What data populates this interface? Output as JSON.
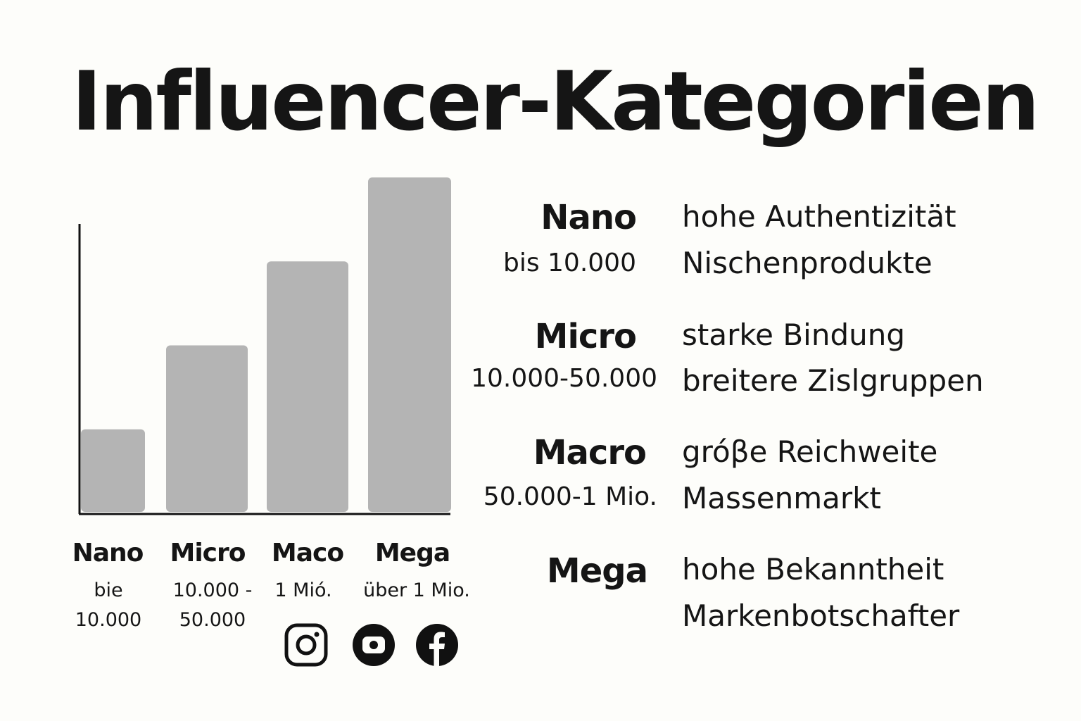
{
  "title": "Influencer-Kategorien",
  "chart_data": {
    "type": "bar",
    "categories": [
      "Nano",
      "Micro",
      "Maco",
      "Mega"
    ],
    "category_ranges": [
      "bie\n10.000",
      "10.000 -\n50.000",
      "1 Mió.",
      "über 1 Mio."
    ],
    "values": [
      1,
      2,
      3,
      4
    ],
    "ylim": [
      0,
      4
    ],
    "xlabel": "",
    "ylabel": "",
    "bar_color": "#b4b4b4",
    "axis_color": "#111111"
  },
  "tiers": [
    {
      "name": "Nano",
      "range": "bis 10.000",
      "traits": [
        "hohe Authentizität",
        "Nischenprodukte"
      ]
    },
    {
      "name": "Micro",
      "range": "10.000-50.000",
      "traits": [
        "starke Bindung",
        "breitere Zislgruppen"
      ]
    },
    {
      "name": "Macro",
      "range": "50.000-1 Mio.",
      "traits": [
        "gróβe Reichweite",
        "Massenmarkt"
      ]
    },
    {
      "name": "Mega",
      "range": "",
      "traits": [
        "hohe Bekanntheit",
        "Markenbotschafter"
      ]
    }
  ],
  "social_icons": [
    "instagram-icon",
    "youtube-icon",
    "facebook-icon"
  ]
}
